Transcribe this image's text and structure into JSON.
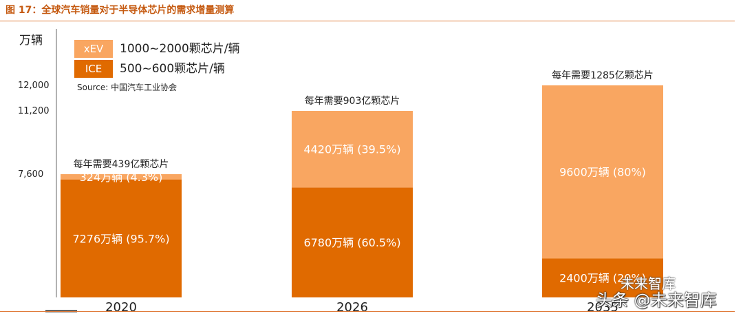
{
  "figure_title": "图 17：全球汽车销量对于半导体芯片的需求增量测算",
  "chart_data": {
    "type": "bar",
    "stacked": true,
    "unit": "万辆",
    "categories": [
      "2020",
      "2026",
      "2035"
    ],
    "series": [
      {
        "name": "ICE",
        "legend_text": "500~600颗芯片/辆",
        "color": "#e06a00",
        "values": [
          7276,
          6780,
          2400
        ],
        "labels": [
          "7276万辆 (95.7%)",
          "6780万辆 (60.5%)",
          "2400万辆 (20%)"
        ]
      },
      {
        "name": "xEV",
        "legend_text": "1000~2000颗芯片/辆",
        "color": "#f9a661",
        "values": [
          324,
          4420,
          9600
        ],
        "labels": [
          "324万辆 (4.3%)",
          "4420万辆 (39.5%)",
          "9600万辆 (80%)"
        ]
      }
    ],
    "totals": [
      7600,
      11200,
      12000
    ],
    "top_annotations": [
      "每年需要439亿颗芯片",
      "每年需要903亿颗芯片",
      "每年需要1285亿颗芯片"
    ],
    "y_ticks": [
      "7,600",
      "11,200",
      "12,000"
    ],
    "ylim": [
      0,
      12000
    ],
    "source": "Source: 中国汽车工业协会",
    "legend_position": "top-left"
  },
  "watermark": {
    "main": "头条 @未来智库",
    "small": "未来智库"
  }
}
